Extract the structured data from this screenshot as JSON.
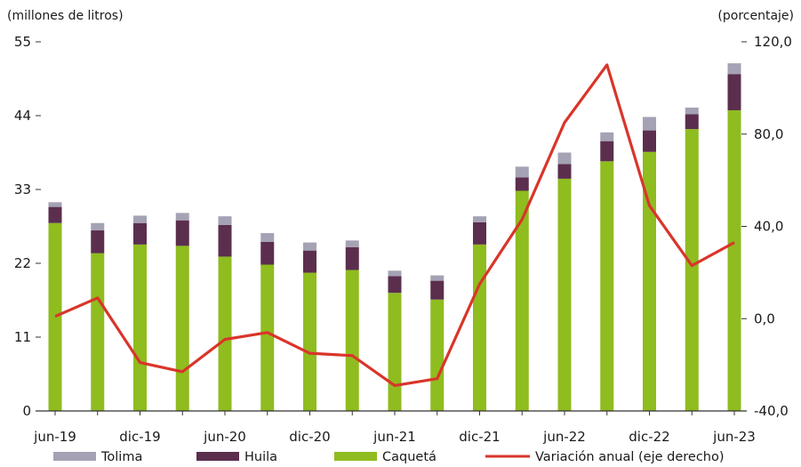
{
  "chart_data": {
    "type": "bar",
    "left_axis_label": "(millones de litros)",
    "right_axis_label": "(porcentaje)",
    "left_ticks": [
      "0",
      "11",
      "22",
      "33",
      "44",
      "55"
    ],
    "right_ticks": [
      "-40,0",
      "0,0",
      "40,0",
      "80,0",
      "120,0"
    ],
    "ylim_left": [
      0,
      55
    ],
    "ylim_right": [
      -40,
      120
    ],
    "x_tick_labels": [
      "jun-19",
      "dic-19",
      "jun-20",
      "dic-20",
      "jun-21",
      "dic-21",
      "jun-22",
      "dic-22",
      "jun-23"
    ],
    "stacked": true,
    "series": [
      {
        "name": "Caquetá",
        "color": "#8fbc1f",
        "values": [
          28.0,
          23.5,
          24.8,
          24.6,
          23.0,
          21.8,
          20.6,
          21.0,
          17.6,
          16.6,
          24.8,
          32.8,
          34.6,
          37.2,
          38.6,
          42.0,
          44.8
        ]
      },
      {
        "name": "Huila",
        "color": "#5b2e4e",
        "values": [
          2.4,
          3.4,
          3.2,
          3.8,
          4.7,
          3.4,
          3.3,
          3.4,
          2.5,
          2.8,
          3.3,
          2.0,
          2.2,
          3.0,
          3.2,
          2.2,
          5.4
        ]
      },
      {
        "name": "Tolima",
        "color": "#a4a2b4",
        "values": [
          0.7,
          1.1,
          1.1,
          1.1,
          1.3,
          1.3,
          1.2,
          1.0,
          0.8,
          0.8,
          0.9,
          1.6,
          1.7,
          1.3,
          2.0,
          1.0,
          1.6
        ]
      }
    ],
    "line": {
      "name": "Variación anual (eje derecho)",
      "color": "#d9352a",
      "values": [
        1.0,
        9.0,
        -19.0,
        -23.0,
        -9.0,
        -6.0,
        -15.0,
        -16.0,
        -29.0,
        -26.0,
        15.0,
        43.0,
        85.0,
        110.0,
        49.0,
        23.0,
        33.0
      ]
    },
    "legend": [
      "Tolima",
      "Huila",
      "Caquetá",
      "Variación anual (eje derecho)"
    ],
    "legend_position": "bottom",
    "grid": false
  }
}
